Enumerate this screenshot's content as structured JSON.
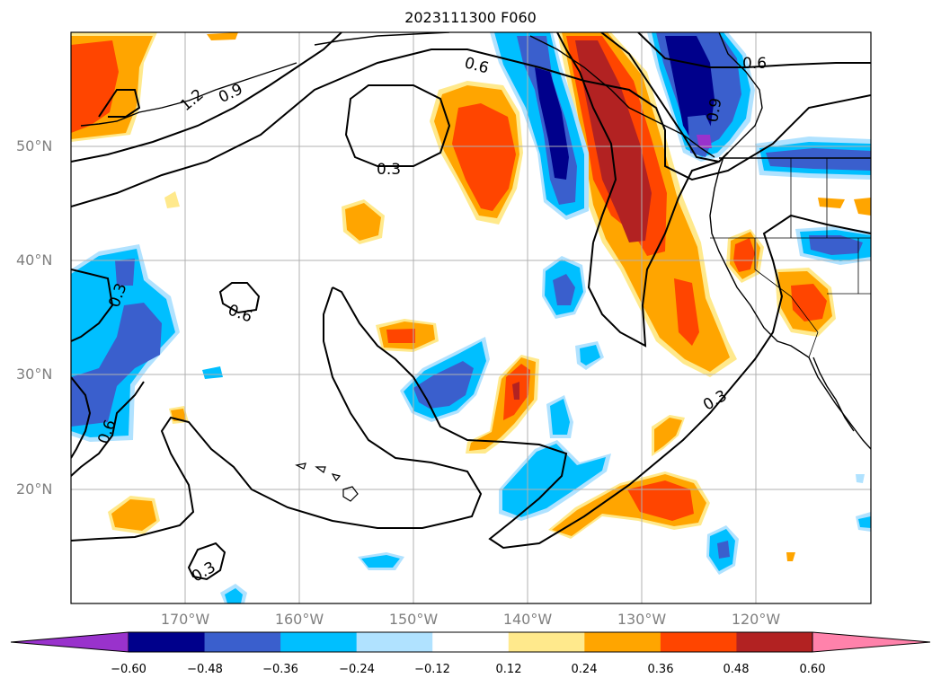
{
  "title": "2023111300 F060",
  "lat_labels": [
    "50°N",
    "40°N",
    "30°N",
    "20°N"
  ],
  "lon_labels": [
    "170°W",
    "160°W",
    "150°W",
    "140°W",
    "130°W",
    "120°W"
  ],
  "contour_labels": [
    "1.2",
    "0.9",
    "0.6",
    "0.3",
    "0.6",
    "0.9",
    "0.6",
    "0.3",
    "0.6",
    "0.3",
    "0.3"
  ],
  "colorbar": {
    "ticks": [
      "−0.60",
      "−0.48",
      "−0.36",
      "−0.24",
      "−0.12",
      "0.12",
      "0.24",
      "0.36",
      "0.48",
      "0.60"
    ],
    "colors": [
      "#9932cc",
      "#00008b",
      "#3a5fcd",
      "#00bfff",
      "#b0e2ff",
      "#ffffff",
      "#ffe98c",
      "#ffa500",
      "#ff4500",
      "#b22222",
      "#ff82ab"
    ]
  }
}
